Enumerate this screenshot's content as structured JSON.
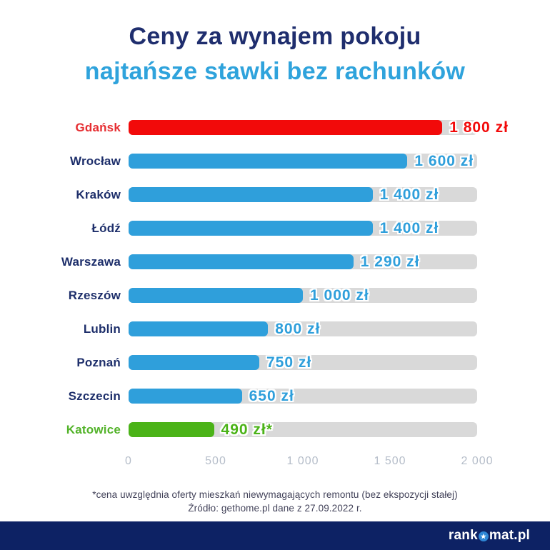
{
  "title": {
    "line1": "Ceny za wynajem pokoju",
    "line2": "najtańsze stawki bez rachunków"
  },
  "chart_data": {
    "type": "bar",
    "orientation": "horizontal",
    "categories": [
      "Gdańsk",
      "Wrocław",
      "Kraków",
      "Łódź",
      "Warszawa",
      "Rzeszów",
      "Lublin",
      "Poznań",
      "Szczecin",
      "Katowice"
    ],
    "values": [
      1800,
      1600,
      1400,
      1400,
      1290,
      1000,
      800,
      750,
      650,
      490
    ],
    "value_labels": [
      "1 800 zł",
      "1 600 zł",
      "1 400 zł",
      "1 400 zł",
      "1 290 zł",
      "1 000 zł",
      "800 zł",
      "750 zł",
      "650 zł",
      "490 zł*"
    ],
    "bar_color_keys": [
      "red",
      "blue",
      "blue",
      "blue",
      "blue",
      "blue",
      "blue",
      "blue",
      "blue",
      "green"
    ],
    "xlim": [
      0,
      2000
    ],
    "x_ticks": [
      0,
      500,
      1000,
      1500,
      2000
    ],
    "x_tick_labels": [
      "0",
      "500",
      "1 000",
      "1 500",
      "2 000"
    ],
    "grid": false,
    "legend": "none",
    "unit": "zł"
  },
  "footnote": {
    "line1": "*cena uwzględnia oferty mieszkań niewymagających remontu (bez ekspozycji stałej)",
    "line2": "Źródło: gethome.pl dane z 27.09.2022 r."
  },
  "footer": {
    "logo_prefix": "rank",
    "logo_suffix": "mat.pl",
    "logo_star_icon": "★"
  },
  "colors": {
    "title_navy": "#1f2e6e",
    "title_blue": "#2fa3dc",
    "bar_red": "#f20a0a",
    "bar_blue": "#2f9fdb",
    "bar_green": "#4bb318",
    "city_label_navy": "#1e2f6b",
    "city_label_red": "#e62e32",
    "city_label_green": "#53b32a",
    "track_gray": "#d9d9d9",
    "axis_label_gray": "#b5bdc9",
    "footnote_gray": "#43435a",
    "footer_bar_navy": "#0d2264"
  }
}
